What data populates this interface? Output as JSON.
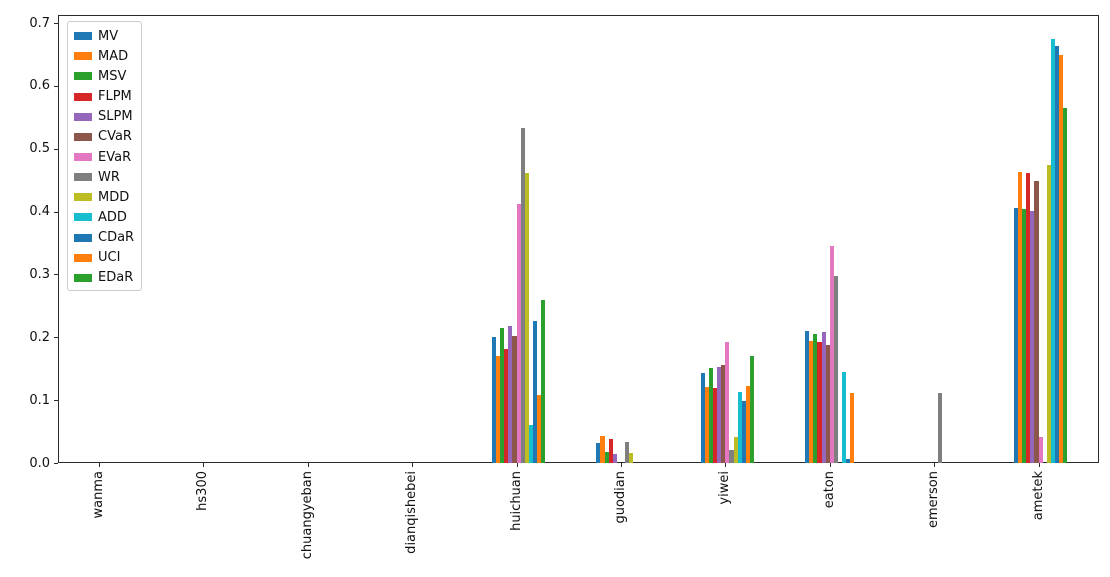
{
  "chart_data": {
    "type": "bar",
    "title": "",
    "xlabel": "",
    "ylabel": "",
    "grid": false,
    "legend_position": "upper left",
    "ylim": [
      0.0,
      0.7125
    ],
    "yticks": [
      "0.0",
      "0.1",
      "0.2",
      "0.3",
      "0.4",
      "0.5",
      "0.6",
      "0.7"
    ],
    "ytick_values": [
      0.0,
      0.1,
      0.2,
      0.3,
      0.4,
      0.5,
      0.6,
      0.7
    ],
    "categories": [
      "wanma",
      "hs300",
      "chuangyeban",
      "dianqishebei",
      "huichuan",
      "guodian",
      "yiwei",
      "eaton",
      "emerson",
      "ametek"
    ],
    "series": [
      {
        "name": "MV",
        "color": "#1f77b4",
        "values": [
          0,
          0,
          0,
          0,
          0.2,
          0.032,
          0.143,
          0.21,
          0,
          0.406
        ]
      },
      {
        "name": "MAD",
        "color": "#ff7f0e",
        "values": [
          0,
          0,
          0,
          0,
          0.17,
          0.043,
          0.121,
          0.194,
          0,
          0.463
        ]
      },
      {
        "name": "MSV",
        "color": "#2ca02c",
        "values": [
          0,
          0,
          0,
          0,
          0.215,
          0.017,
          0.151,
          0.205,
          0,
          0.404
        ]
      },
      {
        "name": "FLPM",
        "color": "#d62728",
        "values": [
          0,
          0,
          0,
          0,
          0.182,
          0.038,
          0.12,
          0.193,
          0,
          0.461
        ]
      },
      {
        "name": "SLPM",
        "color": "#9467bd",
        "values": [
          0,
          0,
          0,
          0,
          0.218,
          0.015,
          0.153,
          0.208,
          0,
          0.401
        ]
      },
      {
        "name": "CVaR",
        "color": "#8c564b",
        "values": [
          0,
          0,
          0,
          0,
          0.202,
          0,
          0.156,
          0.188,
          0,
          0.449
        ]
      },
      {
        "name": "EVaR",
        "color": "#e377c2",
        "values": [
          0,
          0,
          0,
          0,
          0.412,
          0,
          0.193,
          0.346,
          0,
          0.042
        ]
      },
      {
        "name": "WR",
        "color": "#7f7f7f",
        "values": [
          0,
          0,
          0,
          0,
          0.533,
          0.033,
          0.021,
          0.298,
          0.111,
          0
        ]
      },
      {
        "name": "MDD",
        "color": "#bcbd22",
        "values": [
          0,
          0,
          0,
          0,
          0.462,
          0.016,
          0.042,
          0,
          0,
          0.474
        ]
      },
      {
        "name": "ADD",
        "color": "#17becf",
        "values": [
          0,
          0,
          0,
          0,
          0.06,
          0,
          0.113,
          0.144,
          0,
          0.675
        ]
      },
      {
        "name": "CDaR",
        "color": "#1f77b4",
        "values": [
          0,
          0,
          0,
          0,
          0.226,
          0,
          0.099,
          0.006,
          0,
          0.663
        ]
      },
      {
        "name": "UCI",
        "color": "#ff7f0e",
        "values": [
          0,
          0,
          0,
          0,
          0.108,
          0,
          0.123,
          0.112,
          0,
          0.649
        ]
      },
      {
        "name": "EDaR",
        "color": "#2ca02c",
        "values": [
          0,
          0,
          0,
          0,
          0.259,
          0,
          0.171,
          0,
          0,
          0.565
        ]
      }
    ]
  }
}
